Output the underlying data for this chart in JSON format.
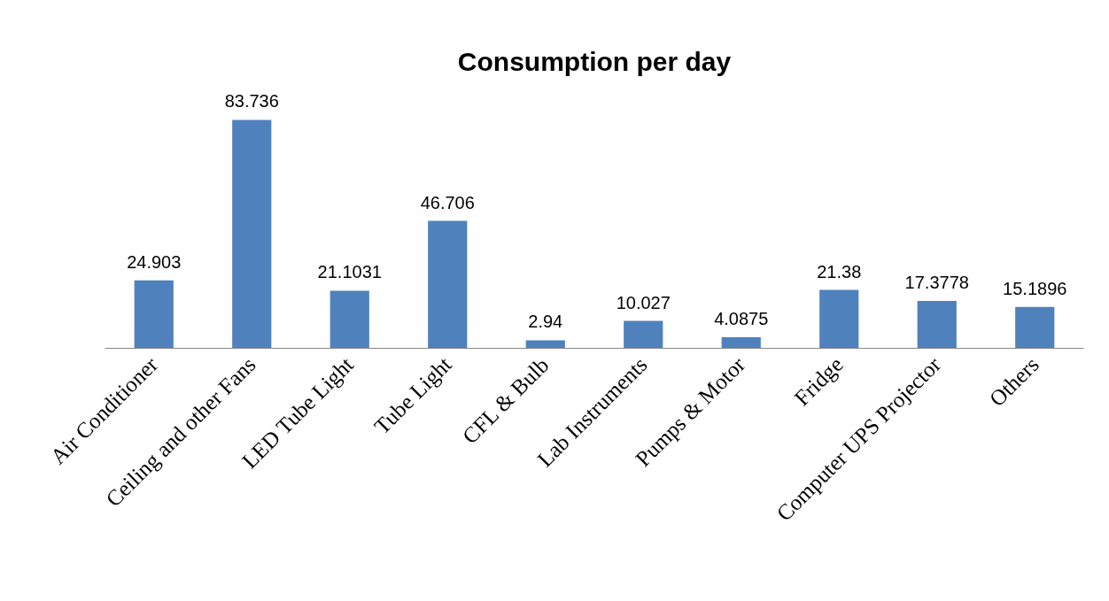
{
  "chart_data": {
    "type": "bar",
    "title": "Consumption per day",
    "categories": [
      "Air Conditioner",
      "Ceiling and other Fans",
      "LED Tube Light",
      "Tube Light",
      "CFL & Bulb",
      "Lab Instruments",
      "Pumps & Motor",
      "Fridge",
      "Computer UPS Projector",
      "Others"
    ],
    "values": [
      24.903,
      83.736,
      21.1031,
      46.706,
      2.94,
      10.027,
      4.0875,
      21.38,
      17.3778,
      15.1896
    ],
    "color": "#4f81bd",
    "data_labels": true,
    "tick_labels": "x",
    "grid": false
  }
}
